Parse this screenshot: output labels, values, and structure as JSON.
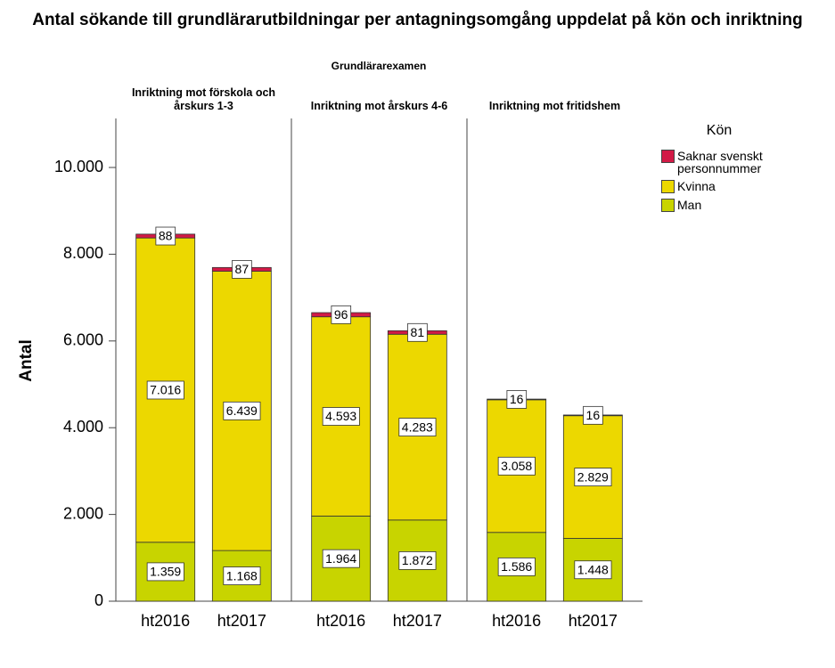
{
  "chart_data": {
    "type": "bar",
    "stacked": true,
    "title": "Antal sökande till grundlärarutbildningar per antagningsomgång uppdelat på kön och inriktning",
    "subtitle": "Grundlärarexamen",
    "ylabel": "Antal",
    "legend_title": "Kön",
    "ylim": [
      0,
      11130
    ],
    "yticks": [
      0,
      {
        "value": 2000,
        "label": "2.000"
      },
      {
        "value": 4000,
        "label": "4.000"
      },
      {
        "value": 6000,
        "label": "6.000"
      },
      {
        "value": 8000,
        "label": "8.000"
      },
      {
        "value": 10000,
        "label": "10.000"
      }
    ],
    "panels": [
      {
        "title": "Inriktning mot förskola och årskurs 1-3",
        "categories": [
          "ht2016",
          "ht2017"
        ]
      },
      {
        "title": "Inriktning mot årskurs 4-6",
        "categories": [
          "ht2016",
          "ht2017"
        ]
      },
      {
        "title": "Inriktning mot fritidshem",
        "categories": [
          "ht2016",
          "ht2017"
        ]
      }
    ],
    "series": [
      {
        "name": "Man",
        "color": "#c8d400",
        "values": [
          [
            1359,
            1168
          ],
          [
            1964,
            1872
          ],
          [
            1586,
            1448
          ]
        ],
        "value_labels": [
          [
            "1.359",
            "1.168"
          ],
          [
            "1.964",
            "1.872"
          ],
          [
            "1.586",
            "1.448"
          ]
        ]
      },
      {
        "name": "Kvinna",
        "color": "#ecd800",
        "values": [
          [
            7016,
            6439
          ],
          [
            4593,
            4283
          ],
          [
            3058,
            2829
          ]
        ],
        "value_labels": [
          [
            "7.016",
            "6.439"
          ],
          [
            "4.593",
            "4.283"
          ],
          [
            "3.058",
            "2.829"
          ]
        ]
      },
      {
        "name": "Saknar svenskt personnummer",
        "color": "#d21a46",
        "values": [
          [
            88,
            87
          ],
          [
            96,
            81
          ],
          [
            16,
            16
          ]
        ]
      }
    ]
  }
}
